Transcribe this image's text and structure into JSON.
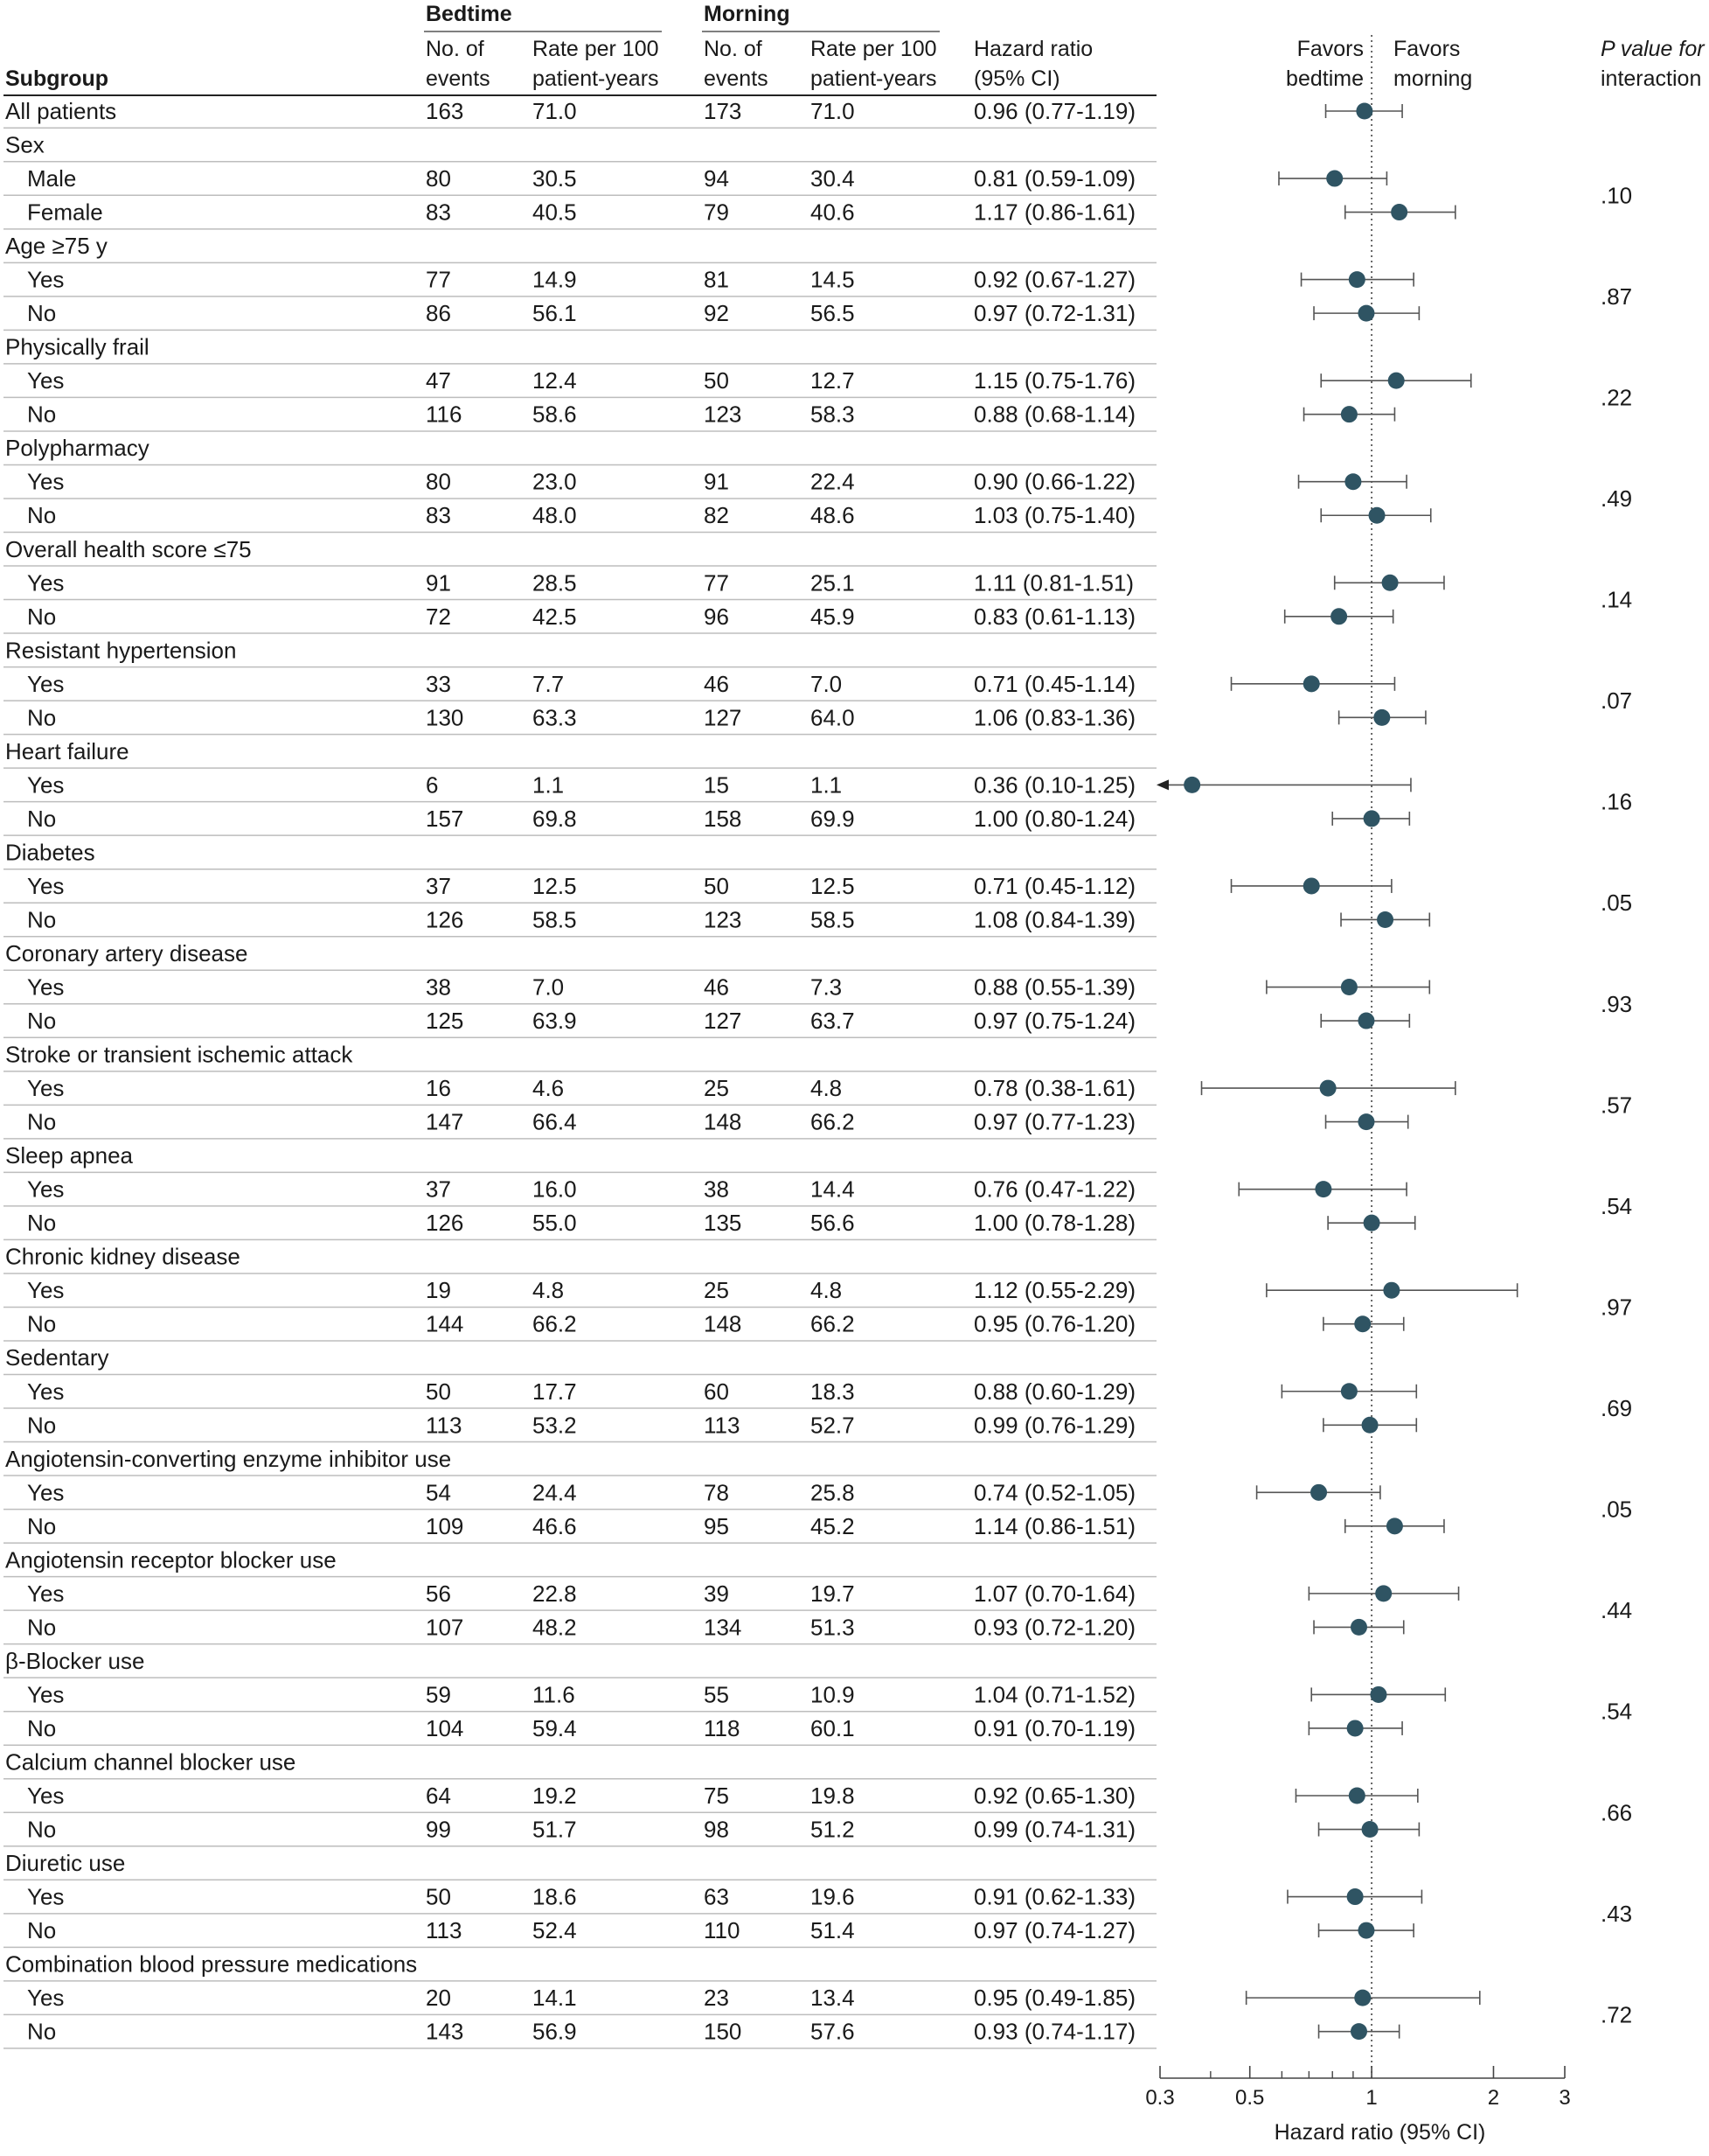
{
  "headers": {
    "subgroup": "Subgroup",
    "bedtime": "Bedtime",
    "morning": "Morning",
    "events_line1": "No. of",
    "events_line2": "events",
    "rate_line1": "Rate per 100",
    "rate_line2": "patient-years",
    "hr_line1": "Hazard ratio",
    "hr_line2": "(95% CI)",
    "favors_bedtime_line1": "Favors",
    "favors_bedtime_line2": "bedtime",
    "favors_morning_line1": "Favors",
    "favors_morning_line2": "morning",
    "pint_line1": "P value for",
    "pint_line2": "interaction"
  },
  "chart_data": {
    "type": "forest",
    "xlabel": "Hazard ratio (95% CI)",
    "x_scale": "log",
    "xlim": [
      0.3,
      3
    ],
    "x_ticks": [
      0.3,
      0.5,
      1,
      2,
      3
    ],
    "x_tick_labels": [
      "0.3",
      "0.5",
      "1",
      "2",
      "3"
    ],
    "reference_line": 1,
    "rows": [
      {
        "label": "All patients",
        "indent": false,
        "bed_events": "163",
        "bed_rate": "71.0",
        "morn_events": "173",
        "morn_rate": "71.0",
        "hr_text": "0.96 (0.77-1.19)",
        "hr": 0.96,
        "lo": 0.77,
        "hi": 1.19
      },
      {
        "label": "Sex",
        "indent": false,
        "header": true
      },
      {
        "label": "Male",
        "indent": true,
        "bed_events": "80",
        "bed_rate": "30.5",
        "morn_events": "94",
        "morn_rate": "30.4",
        "hr_text": "0.81 (0.59-1.09)",
        "hr": 0.81,
        "lo": 0.59,
        "hi": 1.09
      },
      {
        "label": "Female",
        "indent": true,
        "bed_events": "83",
        "bed_rate": "40.5",
        "morn_events": "79",
        "morn_rate": "40.6",
        "hr_text": "1.17 (0.86-1.61)",
        "hr": 1.17,
        "lo": 0.86,
        "hi": 1.61
      },
      {
        "label": "Age ≥75 y",
        "indent": false,
        "header": true
      },
      {
        "label": "Yes",
        "indent": true,
        "bed_events": "77",
        "bed_rate": "14.9",
        "morn_events": "81",
        "morn_rate": "14.5",
        "hr_text": "0.92 (0.67-1.27)",
        "hr": 0.92,
        "lo": 0.67,
        "hi": 1.27
      },
      {
        "label": "No",
        "indent": true,
        "bed_events": "86",
        "bed_rate": "56.1",
        "morn_events": "92",
        "morn_rate": "56.5",
        "hr_text": "0.97 (0.72-1.31)",
        "hr": 0.97,
        "lo": 0.72,
        "hi": 1.31
      },
      {
        "label": "Physically frail",
        "indent": false,
        "header": true
      },
      {
        "label": "Yes",
        "indent": true,
        "bed_events": "47",
        "bed_rate": "12.4",
        "morn_events": "50",
        "morn_rate": "12.7",
        "hr_text": "1.15 (0.75-1.76)",
        "hr": 1.15,
        "lo": 0.75,
        "hi": 1.76
      },
      {
        "label": "No",
        "indent": true,
        "bed_events": "116",
        "bed_rate": "58.6",
        "morn_events": "123",
        "morn_rate": "58.3",
        "hr_text": "0.88 (0.68-1.14)",
        "hr": 0.88,
        "lo": 0.68,
        "hi": 1.14
      },
      {
        "label": "Polypharmacy",
        "indent": false,
        "header": true
      },
      {
        "label": "Yes",
        "indent": true,
        "bed_events": "80",
        "bed_rate": "23.0",
        "morn_events": "91",
        "morn_rate": "22.4",
        "hr_text": "0.90 (0.66-1.22)",
        "hr": 0.9,
        "lo": 0.66,
        "hi": 1.22
      },
      {
        "label": "No",
        "indent": true,
        "bed_events": "83",
        "bed_rate": "48.0",
        "morn_events": "82",
        "morn_rate": "48.6",
        "hr_text": "1.03 (0.75-1.40)",
        "hr": 1.03,
        "lo": 0.75,
        "hi": 1.4
      },
      {
        "label": "Overall health score ≤75",
        "indent": false,
        "header": true
      },
      {
        "label": "Yes",
        "indent": true,
        "bed_events": "91",
        "bed_rate": "28.5",
        "morn_events": "77",
        "morn_rate": "25.1",
        "hr_text": "1.11 (0.81-1.51)",
        "hr": 1.11,
        "lo": 0.81,
        "hi": 1.51
      },
      {
        "label": "No",
        "indent": true,
        "bed_events": "72",
        "bed_rate": "42.5",
        "morn_events": "96",
        "morn_rate": "45.9",
        "hr_text": "0.83 (0.61-1.13)",
        "hr": 0.83,
        "lo": 0.61,
        "hi": 1.13
      },
      {
        "label": "Resistant hypertension",
        "indent": false,
        "header": true
      },
      {
        "label": "Yes",
        "indent": true,
        "bed_events": "33",
        "bed_rate": "7.7",
        "morn_events": "46",
        "morn_rate": "7.0",
        "hr_text": "0.71 (0.45-1.14)",
        "hr": 0.71,
        "lo": 0.45,
        "hi": 1.14
      },
      {
        "label": "No",
        "indent": true,
        "bed_events": "130",
        "bed_rate": "63.3",
        "morn_events": "127",
        "morn_rate": "64.0",
        "hr_text": "1.06 (0.83-1.36)",
        "hr": 1.06,
        "lo": 0.83,
        "hi": 1.36
      },
      {
        "label": "Heart failure",
        "indent": false,
        "header": true
      },
      {
        "label": "Yes",
        "indent": true,
        "bed_events": "6",
        "bed_rate": "1.1",
        "morn_events": "15",
        "morn_rate": "1.1",
        "hr_text": "0.36 (0.10-1.25)",
        "hr": 0.36,
        "lo": 0.1,
        "hi": 1.25
      },
      {
        "label": "No",
        "indent": true,
        "bed_events": "157",
        "bed_rate": "69.8",
        "morn_events": "158",
        "morn_rate": "69.9",
        "hr_text": "1.00 (0.80-1.24)",
        "hr": 1.0,
        "lo": 0.8,
        "hi": 1.24
      },
      {
        "label": "Diabetes",
        "indent": false,
        "header": true
      },
      {
        "label": "Yes",
        "indent": true,
        "bed_events": "37",
        "bed_rate": "12.5",
        "morn_events": "50",
        "morn_rate": "12.5",
        "hr_text": "0.71 (0.45-1.12)",
        "hr": 0.71,
        "lo": 0.45,
        "hi": 1.12
      },
      {
        "label": "No",
        "indent": true,
        "bed_events": "126",
        "bed_rate": "58.5",
        "morn_events": "123",
        "morn_rate": "58.5",
        "hr_text": "1.08 (0.84-1.39)",
        "hr": 1.08,
        "lo": 0.84,
        "hi": 1.39
      },
      {
        "label": "Coronary artery disease",
        "indent": false,
        "header": true
      },
      {
        "label": "Yes",
        "indent": true,
        "bed_events": "38",
        "bed_rate": "7.0",
        "morn_events": "46",
        "morn_rate": "7.3",
        "hr_text": "0.88 (0.55-1.39)",
        "hr": 0.88,
        "lo": 0.55,
        "hi": 1.39
      },
      {
        "label": "No",
        "indent": true,
        "bed_events": "125",
        "bed_rate": "63.9",
        "morn_events": "127",
        "morn_rate": "63.7",
        "hr_text": "0.97 (0.75-1.24)",
        "hr": 0.97,
        "lo": 0.75,
        "hi": 1.24
      },
      {
        "label": "Stroke or transient ischemic attack",
        "indent": false,
        "header": true
      },
      {
        "label": "Yes",
        "indent": true,
        "bed_events": "16",
        "bed_rate": "4.6",
        "morn_events": "25",
        "morn_rate": "4.8",
        "hr_text": "0.78 (0.38-1.61)",
        "hr": 0.78,
        "lo": 0.38,
        "hi": 1.61
      },
      {
        "label": "No",
        "indent": true,
        "bed_events": "147",
        "bed_rate": "66.4",
        "morn_events": "148",
        "morn_rate": "66.2",
        "hr_text": "0.97 (0.77-1.23)",
        "hr": 0.97,
        "lo": 0.77,
        "hi": 1.23
      },
      {
        "label": "Sleep apnea",
        "indent": false,
        "header": true
      },
      {
        "label": "Yes",
        "indent": true,
        "bed_events": "37",
        "bed_rate": "16.0",
        "morn_events": "38",
        "morn_rate": "14.4",
        "hr_text": "0.76 (0.47-1.22)",
        "hr": 0.76,
        "lo": 0.47,
        "hi": 1.22
      },
      {
        "label": "No",
        "indent": true,
        "bed_events": "126",
        "bed_rate": "55.0",
        "morn_events": "135",
        "morn_rate": "56.6",
        "hr_text": "1.00 (0.78-1.28)",
        "hr": 1.0,
        "lo": 0.78,
        "hi": 1.28
      },
      {
        "label": "Chronic kidney disease",
        "indent": false,
        "header": true
      },
      {
        "label": "Yes",
        "indent": true,
        "bed_events": "19",
        "bed_rate": "4.8",
        "morn_events": "25",
        "morn_rate": "4.8",
        "hr_text": "1.12 (0.55-2.29)",
        "hr": 1.12,
        "lo": 0.55,
        "hi": 2.29
      },
      {
        "label": "No",
        "indent": true,
        "bed_events": "144",
        "bed_rate": "66.2",
        "morn_events": "148",
        "morn_rate": "66.2",
        "hr_text": "0.95 (0.76-1.20)",
        "hr": 0.95,
        "lo": 0.76,
        "hi": 1.2
      },
      {
        "label": "Sedentary",
        "indent": false,
        "header": true
      },
      {
        "label": "Yes",
        "indent": true,
        "bed_events": "50",
        "bed_rate": "17.7",
        "morn_events": "60",
        "morn_rate": "18.3",
        "hr_text": "0.88 (0.60-1.29)",
        "hr": 0.88,
        "lo": 0.6,
        "hi": 1.29
      },
      {
        "label": "No",
        "indent": true,
        "bed_events": "113",
        "bed_rate": "53.2",
        "morn_events": "113",
        "morn_rate": "52.7",
        "hr_text": "0.99 (0.76-1.29)",
        "hr": 0.99,
        "lo": 0.76,
        "hi": 1.29
      },
      {
        "label": "Angiotensin-converting enzyme inhibitor use",
        "indent": false,
        "header": true
      },
      {
        "label": "Yes",
        "indent": true,
        "bed_events": "54",
        "bed_rate": "24.4",
        "morn_events": "78",
        "morn_rate": "25.8",
        "hr_text": "0.74 (0.52-1.05)",
        "hr": 0.74,
        "lo": 0.52,
        "hi": 1.05
      },
      {
        "label": "No",
        "indent": true,
        "bed_events": "109",
        "bed_rate": "46.6",
        "morn_events": "95",
        "morn_rate": "45.2",
        "hr_text": "1.14 (0.86-1.51)",
        "hr": 1.14,
        "lo": 0.86,
        "hi": 1.51
      },
      {
        "label": "Angiotensin receptor blocker use",
        "indent": false,
        "header": true
      },
      {
        "label": "Yes",
        "indent": true,
        "bed_events": "56",
        "bed_rate": "22.8",
        "morn_events": "39",
        "morn_rate": "19.7",
        "hr_text": "1.07 (0.70-1.64)",
        "hr": 1.07,
        "lo": 0.7,
        "hi": 1.64
      },
      {
        "label": "No",
        "indent": true,
        "bed_events": "107",
        "bed_rate": "48.2",
        "morn_events": "134",
        "morn_rate": "51.3",
        "hr_text": "0.93 (0.72-1.20)",
        "hr": 0.93,
        "lo": 0.72,
        "hi": 1.2
      },
      {
        "label": "β-Blocker use",
        "indent": false,
        "header": true
      },
      {
        "label": "Yes",
        "indent": true,
        "bed_events": "59",
        "bed_rate": "11.6",
        "morn_events": "55",
        "morn_rate": "10.9",
        "hr_text": "1.04 (0.71-1.52)",
        "hr": 1.04,
        "lo": 0.71,
        "hi": 1.52
      },
      {
        "label": "No",
        "indent": true,
        "bed_events": "104",
        "bed_rate": "59.4",
        "morn_events": "118",
        "morn_rate": "60.1",
        "hr_text": "0.91 (0.70-1.19)",
        "hr": 0.91,
        "lo": 0.7,
        "hi": 1.19
      },
      {
        "label": "Calcium channel blocker use",
        "indent": false,
        "header": true
      },
      {
        "label": "Yes",
        "indent": true,
        "bed_events": "64",
        "bed_rate": "19.2",
        "morn_events": "75",
        "morn_rate": "19.8",
        "hr_text": "0.92 (0.65-1.30)",
        "hr": 0.92,
        "lo": 0.65,
        "hi": 1.3
      },
      {
        "label": "No",
        "indent": true,
        "bed_events": "99",
        "bed_rate": "51.7",
        "morn_events": "98",
        "morn_rate": "51.2",
        "hr_text": "0.99 (0.74-1.31)",
        "hr": 0.99,
        "lo": 0.74,
        "hi": 1.31
      },
      {
        "label": "Diuretic use",
        "indent": false,
        "header": true
      },
      {
        "label": "Yes",
        "indent": true,
        "bed_events": "50",
        "bed_rate": "18.6",
        "morn_events": "63",
        "morn_rate": "19.6",
        "hr_text": "0.91 (0.62-1.33)",
        "hr": 0.91,
        "lo": 0.62,
        "hi": 1.33
      },
      {
        "label": "No",
        "indent": true,
        "bed_events": "113",
        "bed_rate": "52.4",
        "morn_events": "110",
        "morn_rate": "51.4",
        "hr_text": "0.97 (0.74-1.27)",
        "hr": 0.97,
        "lo": 0.74,
        "hi": 1.27
      },
      {
        "label": "Combination blood pressure medications",
        "indent": false,
        "header": true
      },
      {
        "label": "Yes",
        "indent": true,
        "bed_events": "20",
        "bed_rate": "14.1",
        "morn_events": "23",
        "morn_rate": "13.4",
        "hr_text": "0.95 (0.49-1.85)",
        "hr": 0.95,
        "lo": 0.49,
        "hi": 1.85
      },
      {
        "label": "No",
        "indent": true,
        "bed_events": "143",
        "bed_rate": "56.9",
        "morn_events": "150",
        "morn_rate": "57.6",
        "hr_text": "0.93 (0.74-1.17)",
        "hr": 0.93,
        "lo": 0.74,
        "hi": 1.17
      }
    ],
    "interaction_p": [
      {
        "after_row": 3,
        "p": ".10"
      },
      {
        "after_row": 6,
        "p": ".87"
      },
      {
        "after_row": 9,
        "p": ".22"
      },
      {
        "after_row": 12,
        "p": ".49"
      },
      {
        "after_row": 15,
        "p": ".14"
      },
      {
        "after_row": 18,
        "p": ".07"
      },
      {
        "after_row": 21,
        "p": ".16"
      },
      {
        "after_row": 24,
        "p": ".05"
      },
      {
        "after_row": 27,
        "p": ".93"
      },
      {
        "after_row": 30,
        "p": ".57"
      },
      {
        "after_row": 33,
        "p": ".54"
      },
      {
        "after_row": 36,
        "p": ".97"
      },
      {
        "after_row": 39,
        "p": ".69"
      },
      {
        "after_row": 42,
        "p": ".05"
      },
      {
        "after_row": 45,
        "p": ".44"
      },
      {
        "after_row": 48,
        "p": ".54"
      },
      {
        "after_row": 51,
        "p": ".66"
      },
      {
        "after_row": 54,
        "p": ".43"
      },
      {
        "after_row": 57,
        "p": ".72"
      }
    ],
    "colors": {
      "marker": "#2f5463",
      "line": "#555555",
      "rule": "#bdbdbd",
      "text": "#1a1a1a"
    }
  }
}
